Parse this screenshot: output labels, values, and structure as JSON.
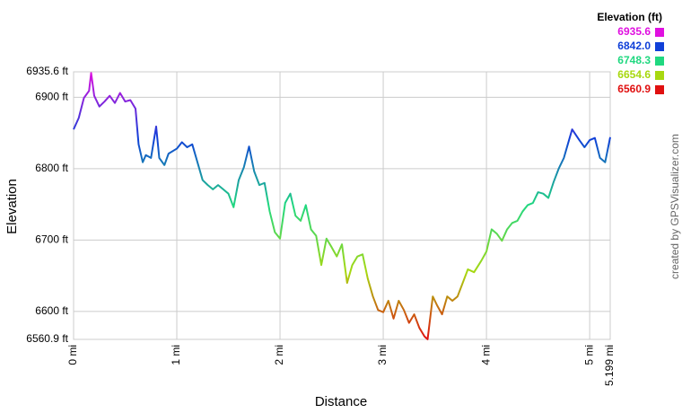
{
  "chart_data": {
    "type": "line",
    "y_label": "Elevation",
    "x_label": "Distance",
    "credit": "created by GPSVisualizer.com",
    "xlim": [
      0,
      5.199
    ],
    "ylim": [
      6560.9,
      6935.6
    ],
    "xticks": [
      {
        "value": 0,
        "label": "0 mi"
      },
      {
        "value": 1,
        "label": "1 mi"
      },
      {
        "value": 2,
        "label": "2 mi"
      },
      {
        "value": 3,
        "label": "3 mi"
      },
      {
        "value": 4,
        "label": "4 mi"
      },
      {
        "value": 5,
        "label": "5 mi"
      },
      {
        "value": 5.199,
        "label": "5.199 mi"
      }
    ],
    "yticks": [
      {
        "value": 6560.9,
        "label": "6560.9 ft"
      },
      {
        "value": 6600,
        "label": "6600 ft"
      },
      {
        "value": 6700,
        "label": "6700 ft"
      },
      {
        "value": 6800,
        "label": "6800 ft"
      },
      {
        "value": 6900,
        "label": "6900 ft"
      },
      {
        "value": 6935.6,
        "label": "6935.6 ft"
      }
    ],
    "grid": true,
    "color_scale": {
      "title": "Elevation (ft)",
      "stops": [
        {
          "value": 6935.6,
          "label": "6935.6",
          "color": "#e010e0"
        },
        {
          "value": 6842,
          "label": "6842.0",
          "color": "#1040d8"
        },
        {
          "value": 6748.3,
          "label": "6748.3",
          "color": "#20d880"
        },
        {
          "value": 6654.6,
          "label": "6654.6",
          "color": "#a8d810"
        },
        {
          "value": 6560.9,
          "label": "6560.9",
          "color": "#e01010"
        }
      ]
    },
    "x": [
      0,
      0.05,
      0.1,
      0.15,
      0.17,
      0.2,
      0.25,
      0.3,
      0.35,
      0.4,
      0.45,
      0.5,
      0.55,
      0.6,
      0.63,
      0.67,
      0.7,
      0.75,
      0.8,
      0.83,
      0.88,
      0.92,
      1.0,
      1.05,
      1.1,
      1.15,
      1.2,
      1.25,
      1.3,
      1.35,
      1.4,
      1.45,
      1.5,
      1.55,
      1.6,
      1.65,
      1.7,
      1.75,
      1.8,
      1.85,
      1.9,
      1.95,
      2.0,
      2.05,
      2.1,
      2.15,
      2.2,
      2.25,
      2.3,
      2.35,
      2.4,
      2.45,
      2.5,
      2.55,
      2.6,
      2.65,
      2.7,
      2.75,
      2.8,
      2.85,
      2.9,
      2.95,
      3.0,
      3.05,
      3.1,
      3.15,
      3.2,
      3.25,
      3.3,
      3.35,
      3.4,
      3.43,
      3.48,
      3.52,
      3.57,
      3.62,
      3.67,
      3.72,
      3.77,
      3.82,
      3.88,
      3.95,
      4.0,
      4.05,
      4.1,
      4.15,
      4.2,
      4.25,
      4.3,
      4.35,
      4.4,
      4.45,
      4.5,
      4.55,
      4.6,
      4.65,
      4.7,
      4.75,
      4.8,
      4.83,
      4.9,
      4.95,
      5.0,
      5.05,
      5.1,
      5.15,
      5.199
    ],
    "values": [
      6855,
      6871,
      6899,
      6909,
      6934,
      6902,
      6887,
      6894,
      6902,
      6892,
      6906,
      6894,
      6896,
      6884,
      6834,
      6809,
      6819,
      6815,
      6859,
      6815,
      6805,
      6821,
      6828,
      6837,
      6830,
      6834,
      6809,
      6784,
      6777,
      6771,
      6777,
      6771,
      6765,
      6746,
      6784,
      6802,
      6831,
      6796,
      6777,
      6780,
      6740,
      6711,
      6702,
      6752,
      6765,
      6734,
      6727,
      6749,
      6715,
      6706,
      6665,
      6702,
      6690,
      6677,
      6694,
      6640,
      6665,
      6677,
      6680,
      6646,
      6621,
      6602,
      6599,
      6615,
      6590,
      6615,
      6602,
      6584,
      6596,
      6577,
      6565,
      6561,
      6621,
      6609,
      6596,
      6621,
      6615,
      6621,
      6640,
      6659,
      6655,
      6671,
      6684,
      6715,
      6709,
      6699,
      6715,
      6724,
      6727,
      6740,
      6749,
      6752,
      6767,
      6765,
      6759,
      6781,
      6800,
      6815,
      6840,
      6855,
      6840,
      6830,
      6840,
      6843,
      6815,
      6809,
      6844
    ]
  }
}
